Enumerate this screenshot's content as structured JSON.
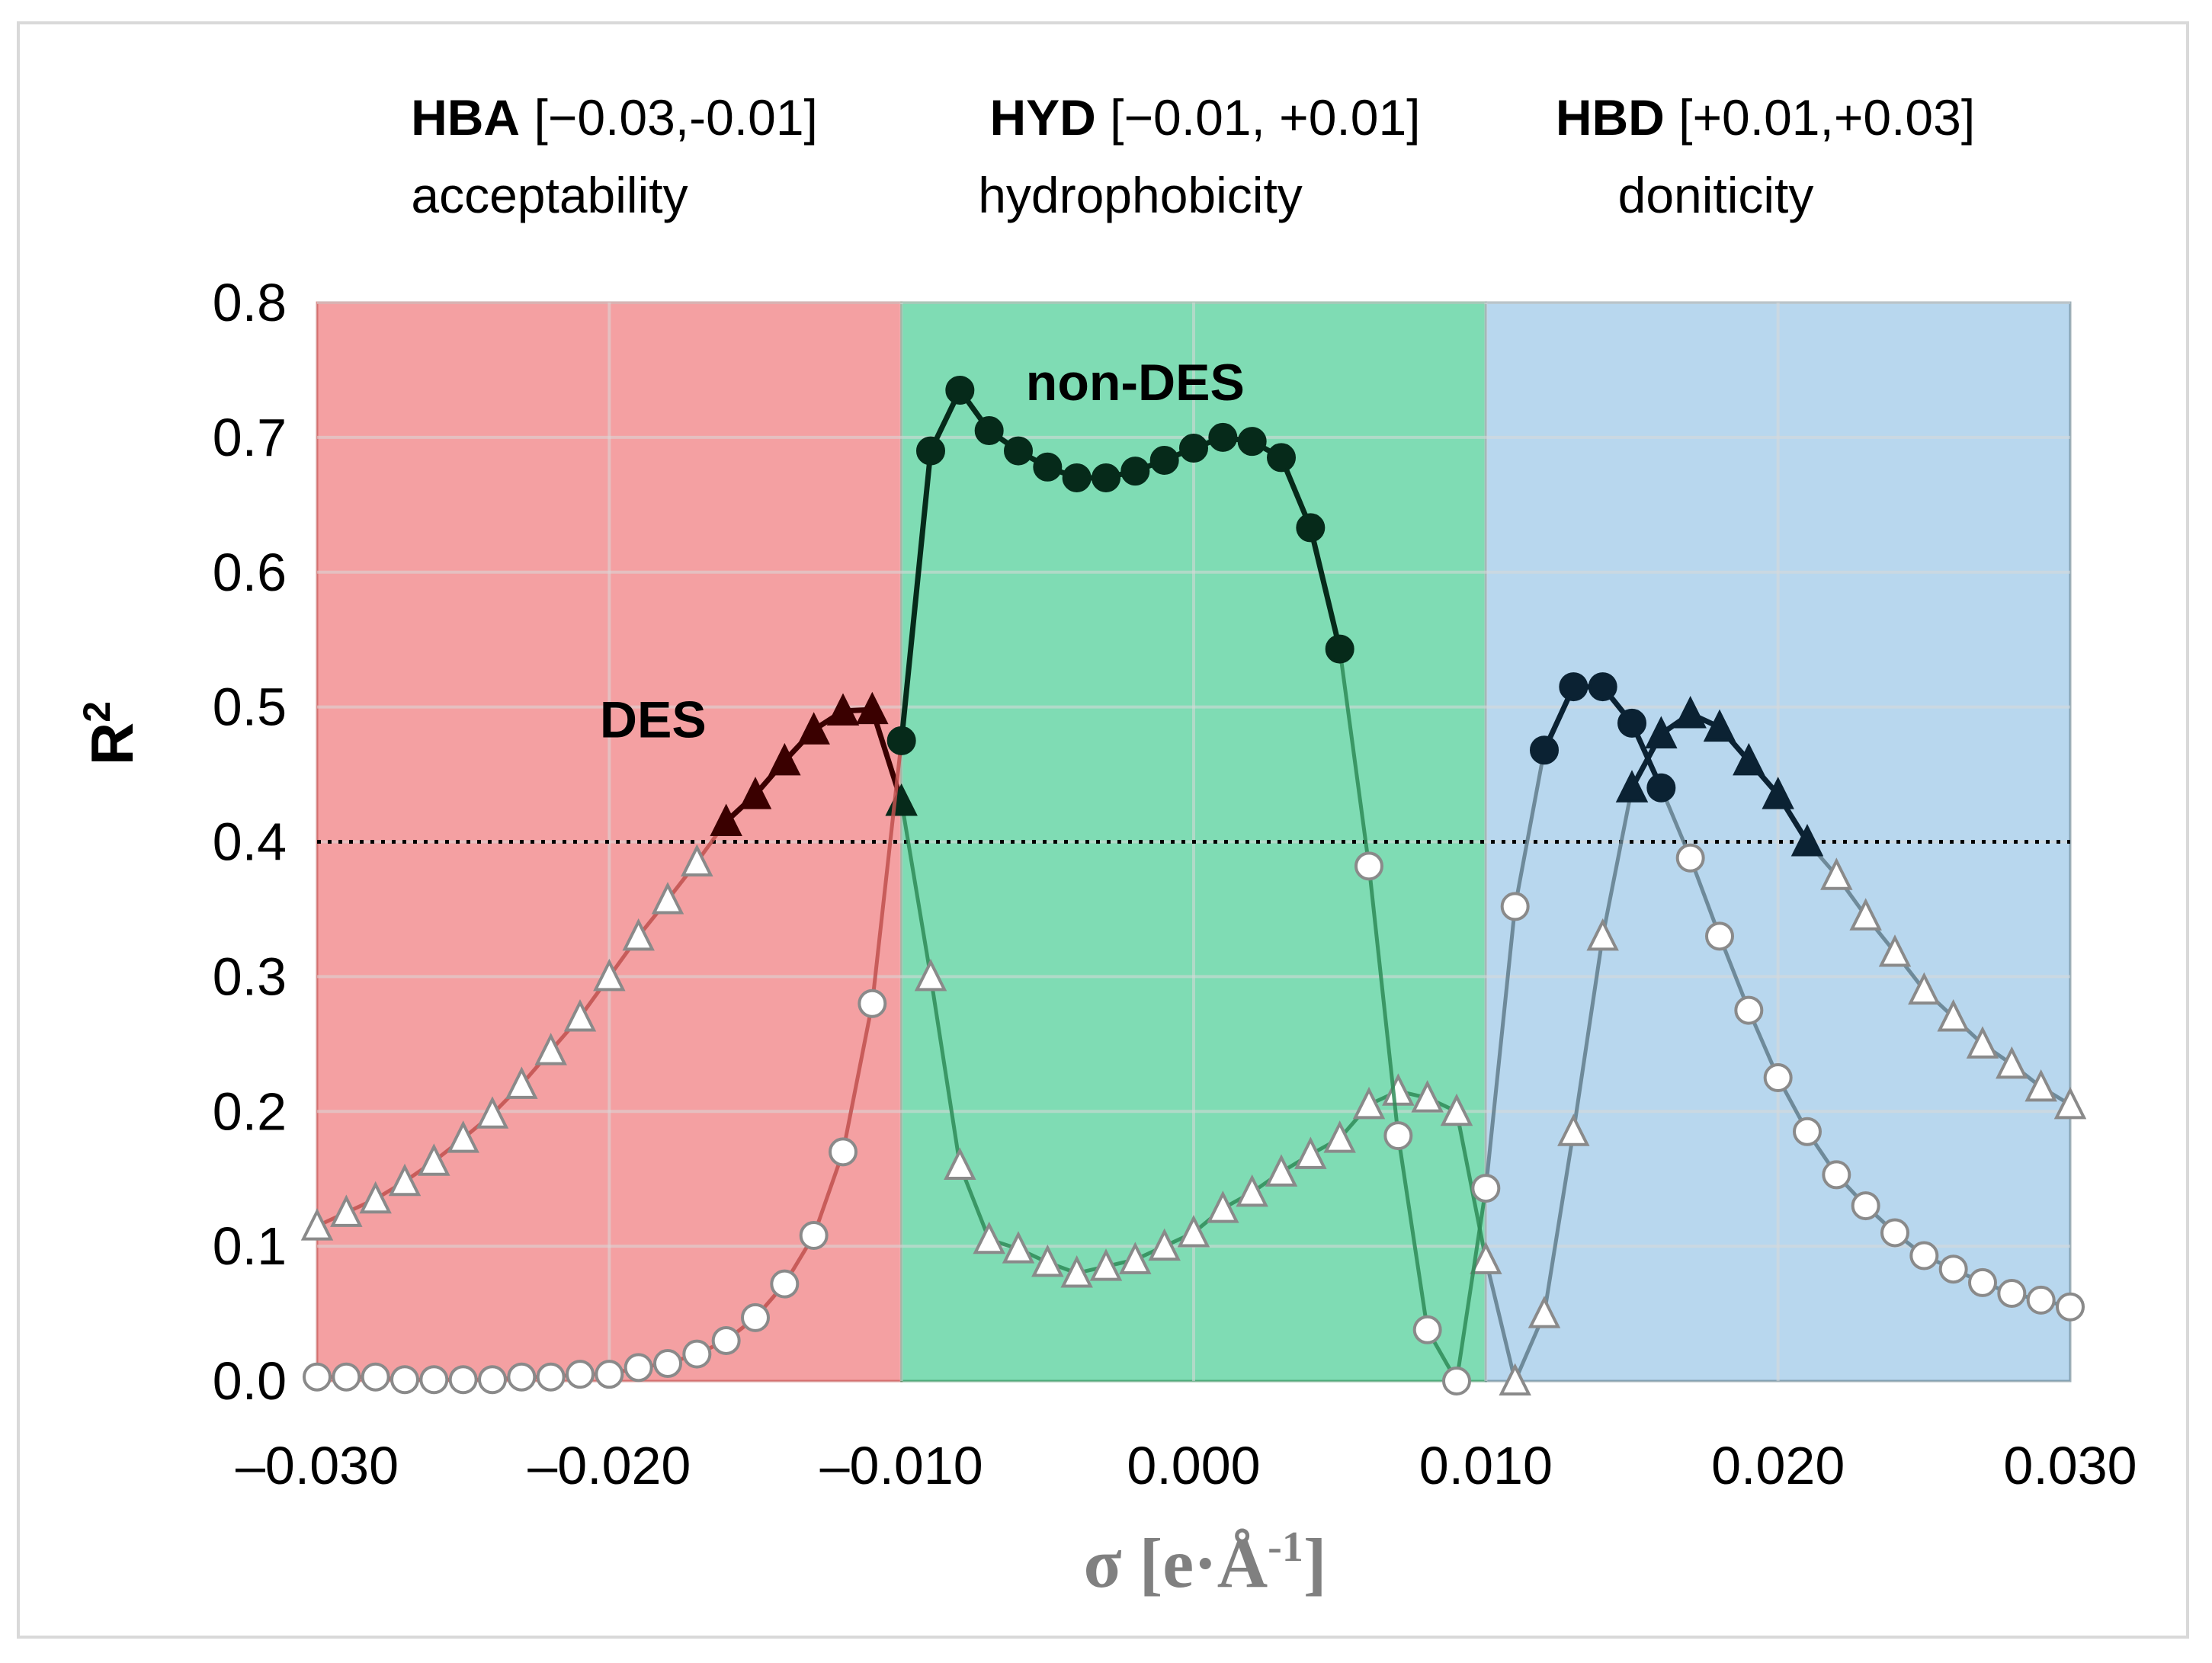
{
  "chart_data": {
    "type": "line",
    "xlabel": "σ [e·Å",
    "xlabel_sup": "-1",
    "xlabel_close": "]",
    "ylabel": "R",
    "ylabel_sup": "2",
    "xlim": [
      -0.03,
      0.03
    ],
    "ylim": [
      0.0,
      0.8
    ],
    "x_ticks": [
      -0.03,
      -0.02,
      -0.01,
      0.0,
      0.01,
      0.02,
      0.03
    ],
    "x_tick_labels": [
      "–0.030",
      "–0.020",
      "–0.010",
      "0.000",
      "0.010",
      "0.020",
      "0.030"
    ],
    "y_ticks": [
      0.0,
      0.1,
      0.2,
      0.3,
      0.4,
      0.5,
      0.6,
      0.7,
      0.8
    ],
    "y_tick_labels": [
      "0.0",
      "0.1",
      "0.2",
      "0.3",
      "0.4",
      "0.5",
      "0.6",
      "0.7",
      "0.8"
    ],
    "x_grid": [
      -0.02,
      -0.01,
      0.0,
      0.01,
      0.02
    ],
    "threshold": 0.4,
    "regions": [
      {
        "id": "hba",
        "name": "HBA",
        "range_label": " [−0.03,-0.01]",
        "subtitle": "acceptability",
        "from": -0.03,
        "to": -0.01,
        "color": "#f4a0a2",
        "line_color": "#c0504d"
      },
      {
        "id": "hyd",
        "name": "HYD",
        "range_label": " [−0.01, +0.01]",
        "subtitle": "hydrophobicity",
        "from": -0.01,
        "to": 0.01,
        "color": "#7fdcb4",
        "line_color": "#2e8b57"
      },
      {
        "id": "hbd",
        "name": "HBD",
        "range_label": " [+0.01,+0.03]",
        "subtitle": "doniticity",
        "from": 0.01,
        "to": 0.03,
        "color": "#b8d7ee",
        "line_color": "#607d8b"
      }
    ],
    "annotations": [
      {
        "text": "DES",
        "x": -0.0185,
        "y": 0.49
      },
      {
        "text": "non-DES",
        "x": -0.002,
        "y": 0.74
      }
    ],
    "series": [
      {
        "name": "DES",
        "marker": "triangle",
        "x": [
          -0.03,
          -0.029,
          -0.028,
          -0.027,
          -0.026,
          -0.025,
          -0.024,
          -0.023,
          -0.022,
          -0.021,
          -0.02,
          -0.019,
          -0.018,
          -0.017,
          -0.016,
          -0.015,
          -0.014,
          -0.013,
          -0.012,
          -0.011,
          -0.01,
          -0.009,
          -0.008,
          -0.007,
          -0.006,
          -0.005,
          -0.004,
          -0.003,
          -0.002,
          -0.001,
          0.0,
          0.001,
          0.002,
          0.003,
          0.004,
          0.005,
          0.006,
          0.007,
          0.008,
          0.009,
          0.01,
          0.011,
          0.012,
          0.013,
          0.014,
          0.015,
          0.016,
          0.017,
          0.018,
          0.019,
          0.02,
          0.021,
          0.022,
          0.023,
          0.024,
          0.025,
          0.026,
          0.027,
          0.028,
          0.029,
          0.03
        ],
        "y": [
          0.115,
          0.125,
          0.135,
          0.148,
          0.163,
          0.18,
          0.198,
          0.22,
          0.245,
          0.27,
          0.3,
          0.33,
          0.357,
          0.385,
          0.415,
          0.435,
          0.46,
          0.483,
          0.497,
          0.498,
          0.43,
          0.3,
          0.16,
          0.105,
          0.098,
          0.088,
          0.08,
          0.085,
          0.09,
          0.1,
          0.11,
          0.128,
          0.14,
          0.155,
          0.168,
          0.18,
          0.205,
          0.215,
          0.21,
          0.2,
          0.09,
          0.0,
          0.05,
          0.185,
          0.33,
          0.44,
          0.48,
          0.495,
          0.485,
          0.46,
          0.435,
          0.4,
          0.375,
          0.345,
          0.318,
          0.29,
          0.27,
          0.25,
          0.235,
          0.218,
          0.205
        ]
      },
      {
        "name": "non-DES",
        "marker": "circle",
        "x": [
          -0.03,
          -0.029,
          -0.028,
          -0.027,
          -0.026,
          -0.025,
          -0.024,
          -0.023,
          -0.022,
          -0.021,
          -0.02,
          -0.019,
          -0.018,
          -0.017,
          -0.016,
          -0.015,
          -0.014,
          -0.013,
          -0.012,
          -0.011,
          -0.01,
          -0.009,
          -0.008,
          -0.007,
          -0.006,
          -0.005,
          -0.004,
          -0.003,
          -0.002,
          -0.001,
          0.0,
          0.001,
          0.002,
          0.003,
          0.004,
          0.005,
          0.006,
          0.007,
          0.008,
          0.009,
          0.01,
          0.011,
          0.012,
          0.013,
          0.014,
          0.015,
          0.016,
          0.017,
          0.018,
          0.019,
          0.02,
          0.021,
          0.022,
          0.023,
          0.024,
          0.025,
          0.026,
          0.027,
          0.028,
          0.029,
          0.03
        ],
        "y": [
          0.003,
          0.003,
          0.003,
          0.001,
          0.001,
          0.001,
          0.001,
          0.003,
          0.003,
          0.005,
          0.005,
          0.01,
          0.013,
          0.02,
          0.03,
          0.047,
          0.072,
          0.108,
          0.17,
          0.28,
          0.475,
          0.69,
          0.735,
          0.705,
          0.69,
          0.678,
          0.67,
          0.67,
          0.675,
          0.683,
          0.692,
          0.7,
          0.697,
          0.685,
          0.633,
          0.543,
          0.382,
          0.182,
          0.038,
          0.0,
          0.143,
          0.352,
          0.468,
          0.515,
          0.515,
          0.488,
          0.44,
          0.388,
          0.33,
          0.275,
          0.225,
          0.185,
          0.153,
          0.13,
          0.11,
          0.093,
          0.083,
          0.073,
          0.065,
          0.06,
          0.055
        ]
      }
    ]
  }
}
